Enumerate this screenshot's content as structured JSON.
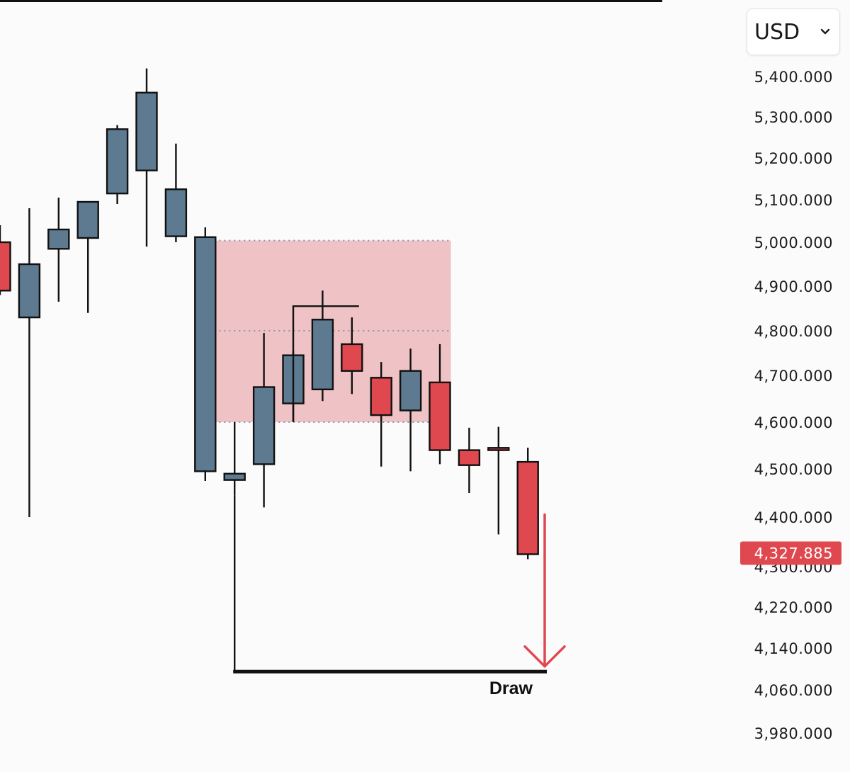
{
  "currency": {
    "selected": "USD"
  },
  "colors": {
    "bearish": "#e0484f",
    "bullish": "#5d7a90",
    "zone_fill": "#efc3c5",
    "price_tag": "#e0484f",
    "arrow": "#e0484f",
    "dotted": "#8a96a6"
  },
  "chart_data": {
    "type": "candlestick",
    "y_axis": {
      "position": "right",
      "tick_labels": [
        "5,400.000",
        "5,300.000",
        "5,200.000",
        "5,100.000",
        "5,000.000",
        "4,900.000",
        "4,800.000",
        "4,700.000",
        "4,600.000",
        "4,500.000",
        "4,400.000",
        "4,300.000",
        "4,220.000",
        "4,140.000",
        "4,060.000",
        "3,980.000"
      ],
      "tick_values": [
        5400,
        5300,
        5200,
        5100,
        5000,
        4900,
        4800,
        4700,
        4600,
        4500,
        4400,
        4300,
        4220,
        4140,
        4060,
        3980
      ]
    },
    "current_price": {
      "label": "4,327.885",
      "value": 4327.885
    },
    "candles": [
      {
        "open": 5000,
        "high": 5040,
        "low": 4880,
        "close": 4890
      },
      {
        "open": 4830,
        "high": 5080,
        "low": 4400,
        "close": 4950
      },
      {
        "open": 4985,
        "high": 5105,
        "low": 4865,
        "close": 5030
      },
      {
        "open": 5010,
        "high": 5095,
        "low": 4840,
        "close": 5095
      },
      {
        "open": 5115,
        "high": 5280,
        "low": 5090,
        "close": 5270
      },
      {
        "open": 5170,
        "high": 5420,
        "low": 4990,
        "close": 5360
      },
      {
        "open": 5014,
        "high": 5235,
        "low": 5000,
        "close": 5125
      },
      {
        "open": 4495,
        "high": 5035,
        "low": 4475,
        "close": 5012
      },
      {
        "open": 4477,
        "high": 4600,
        "low": 4445,
        "close": 4490
      },
      {
        "open": 4510,
        "high": 4795,
        "low": 4420,
        "close": 4675
      },
      {
        "open": 4640,
        "high": 4755,
        "low": 4600,
        "close": 4745
      },
      {
        "open": 4670,
        "high": 4890,
        "low": 4645,
        "close": 4825
      },
      {
        "open": 4770,
        "high": 4830,
        "low": 4660,
        "close": 4710
      },
      {
        "open": 4695,
        "high": 4730,
        "low": 4505,
        "close": 4615
      },
      {
        "open": 4625,
        "high": 4760,
        "low": 4495,
        "close": 4710
      },
      {
        "open": 4685,
        "high": 4770,
        "low": 4510,
        "close": 4540
      },
      {
        "open": 4540,
        "high": 4588,
        "low": 4450,
        "close": 4508
      },
      {
        "open": 4545,
        "high": 4590,
        "low": 4365,
        "close": 4540
      },
      {
        "open": 4515,
        "high": 4545,
        "low": 4315,
        "close": 4325
      }
    ],
    "zone": {
      "top": 5004,
      "mid": 4800,
      "bottom": 4600,
      "first_candle": 7,
      "last_candle": 15
    },
    "swing_high_marker": {
      "value": 4855,
      "from_candle": 10,
      "to_candle": 12
    },
    "draw_level": {
      "value": 4095,
      "label": "Draw",
      "from_candle": 8,
      "to_candle": 18
    },
    "arrow": {
      "from": 4405,
      "to": 4105,
      "direction": "down"
    }
  }
}
